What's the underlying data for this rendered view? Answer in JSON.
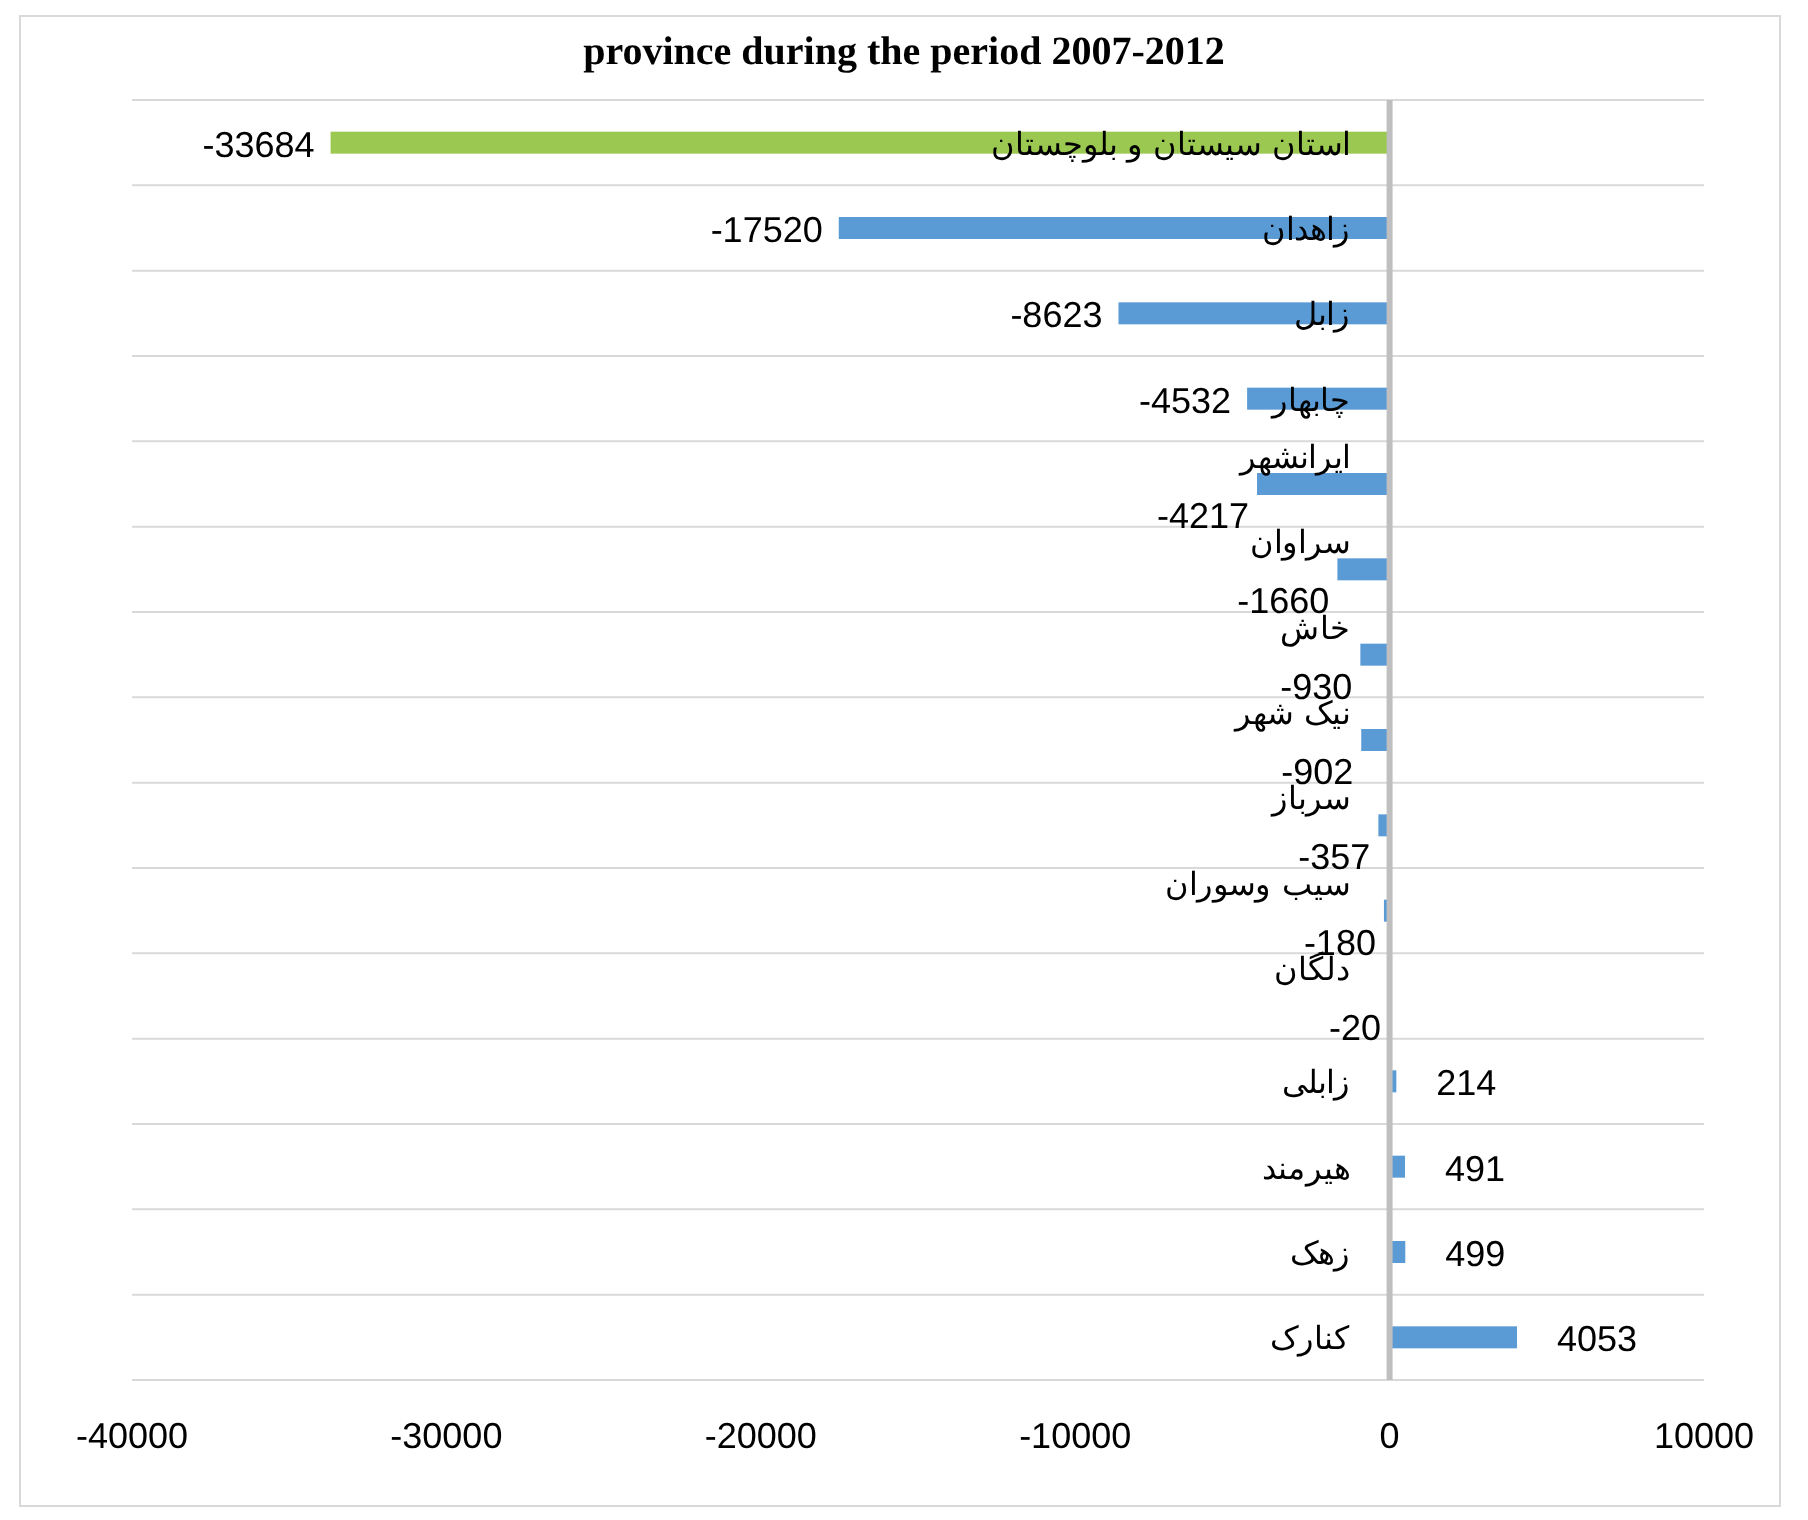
{
  "chart_data": {
    "type": "bar",
    "orientation": "horizontal",
    "title": "province during the period 2007-2012",
    "categories": [
      "استان سیستان و بلوچستان",
      "زاهدان",
      "زابل",
      "چابهار",
      "ایرانشهر",
      "سراوان",
      "خاش",
      "نیک شهر",
      "سرباز",
      "سیب وسوران",
      "دلگان",
      "زابلی",
      "هیرمند",
      "زهک",
      "کنارک"
    ],
    "values": [
      -33684,
      -17520,
      -8623,
      -4532,
      -4217,
      -1660,
      -930,
      -902,
      -357,
      -180,
      -20,
      214,
      491,
      499,
      4053
    ],
    "colors": [
      "#9bc850",
      "#5b9bd5",
      "#5b9bd5",
      "#5b9bd5",
      "#5b9bd5",
      "#5b9bd5",
      "#5b9bd5",
      "#5b9bd5",
      "#5b9bd5",
      "#5b9bd5",
      "#5b9bd5",
      "#5b9bd5",
      "#5b9bd5",
      "#5b9bd5",
      "#5b9bd5"
    ],
    "xlim": [
      -40000,
      10000
    ],
    "xticks": [
      -40000,
      -30000,
      -20000,
      -10000,
      0,
      10000
    ],
    "grid": "y",
    "data_labels": true
  }
}
